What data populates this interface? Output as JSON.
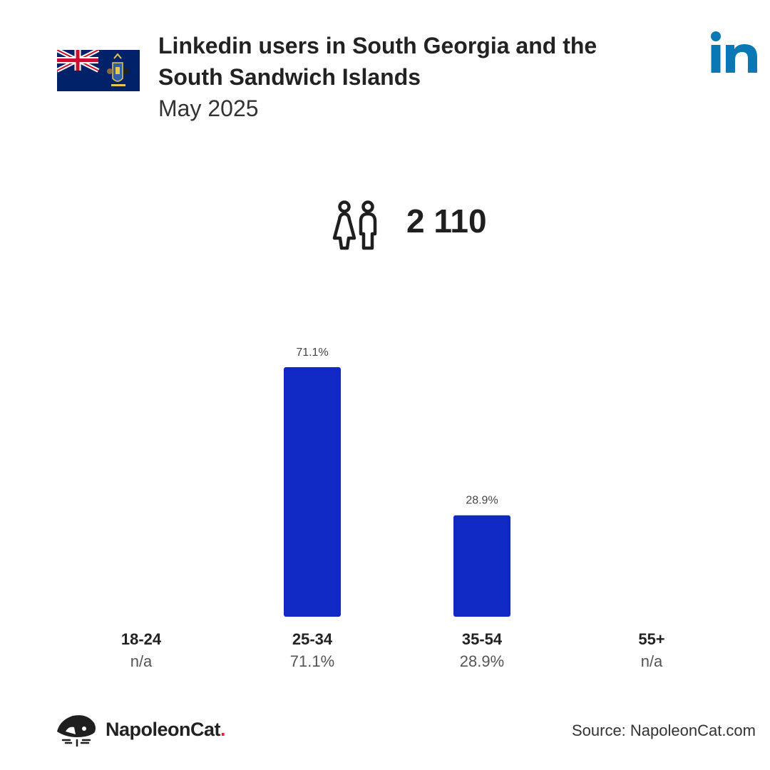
{
  "header": {
    "title": "Linkedin users in South Georgia and the South Sandwich Islands",
    "subtitle": "May 2025"
  },
  "icons": {
    "flag": "south-georgia-flag-icon",
    "logo": "linkedin-logo-icon",
    "users": "people-icon",
    "brand": "napoleoncat-logo-icon"
  },
  "summary": {
    "total_users": "2 110"
  },
  "colors": {
    "bar": "#1029c5",
    "linkedin": "#0a78b5",
    "brand_dot": "#e0262d"
  },
  "chart_data": {
    "type": "bar",
    "categories": [
      "18-24",
      "25-34",
      "35-54",
      "55+"
    ],
    "values": [
      null,
      71.1,
      28.9,
      null
    ],
    "value_labels": [
      "n/a",
      "71.1%",
      "28.9%",
      "n/a"
    ],
    "bar_labels": [
      "",
      "71.1%",
      "28.9%",
      ""
    ],
    "ylim": [
      0,
      71.1
    ]
  },
  "footer": {
    "brand_name": "NapoleonCat",
    "brand_dot": ".",
    "source": "Source: NapoleonCat.com"
  }
}
